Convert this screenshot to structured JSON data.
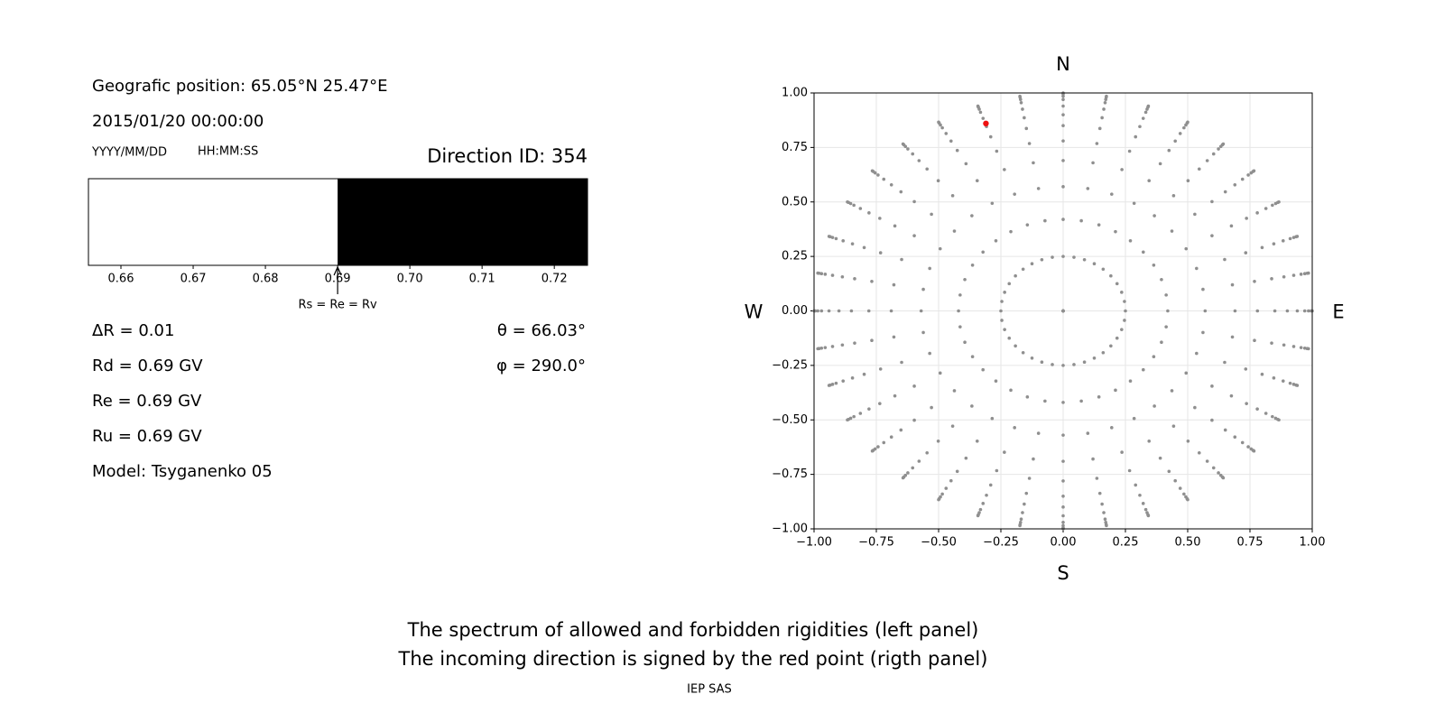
{
  "header": {
    "position": "Geografic position: 65.05°N 25.47°E",
    "datetime": "2015/01/20 00:00:00",
    "date_format": "YYYY/MM/DD",
    "time_format": "HH:MM:SS",
    "direction_id": "Direction ID: 354"
  },
  "parameters": {
    "delta_r": "ΔR = 0.01",
    "rd": "Rd = 0.69 GV",
    "re": "Re = 0.69 GV",
    "ru": "Ru = 0.69 GV",
    "model": "Model: Tsyganenko 05",
    "theta": "θ = 66.03°",
    "phi": "φ = 290.0°"
  },
  "chart_data": [
    {
      "type": "rigidity-spectrum",
      "xlim": [
        0.6555,
        0.7246
      ],
      "xticks": [
        0.66,
        0.67,
        0.68,
        0.69,
        {
          "value": 0.7,
          "label": "0.70"
        },
        0.71,
        0.72
      ],
      "cutoff": 0.69,
      "cutoff_label": "Rs = Re = Rv",
      "below_color": "#ffffff",
      "above_color": "#000000"
    },
    {
      "type": "scatter",
      "xlim": [
        -1,
        1
      ],
      "ylim": [
        -1,
        1
      ],
      "xticks": [
        {
          "value": -1,
          "label": "−1.00"
        },
        {
          "value": -0.75,
          "label": "−0.75"
        },
        {
          "value": -0.5,
          "label": "−0.50"
        },
        {
          "value": -0.25,
          "label": "−0.25"
        },
        {
          "value": 0,
          "label": "0.00"
        },
        0.25,
        {
          "value": 0.5,
          "label": "0.50"
        },
        0.75,
        {
          "value": 1,
          "label": "1.00"
        }
      ],
      "yticks": [
        {
          "value": -1,
          "label": "−1.00"
        },
        {
          "value": -0.75,
          "label": "−0.75"
        },
        {
          "value": -0.5,
          "label": "−0.50"
        },
        {
          "value": -0.25,
          "label": "−0.25"
        },
        {
          "value": 0,
          "label": "0.00"
        },
        0.25,
        {
          "value": 0.5,
          "label": "0.50"
        },
        0.75,
        {
          "value": 1,
          "label": "1.00"
        }
      ],
      "grid": true,
      "directions": {
        "top": "N",
        "bottom": "S",
        "left": "W",
        "right": "E"
      },
      "grid_points": {
        "r": [
          0,
          0.25,
          0.42,
          0.57,
          0.69,
          0.78,
          0.85,
          0.9,
          0.94,
          0.97,
          0.985,
          0.995,
          1.0
        ],
        "azimuth": [
          0,
          10,
          20,
          30,
          40,
          50,
          60,
          70,
          80,
          90,
          100,
          110,
          120,
          130,
          140,
          150,
          160,
          170,
          180,
          190,
          200,
          210,
          220,
          230,
          240,
          250,
          260,
          270,
          280,
          290,
          300,
          310,
          320,
          330,
          340,
          350
        ],
        "color": "#8f8f8f"
      },
      "highlight": {
        "x": -0.31,
        "y": 0.86,
        "color": "#ee1111"
      }
    }
  ],
  "caption": [
    "The spectrum of allowed and forbidden rigidities (left panel)",
    "The incoming direction is signed by the red point (rigth panel)"
  ],
  "footer": "IEP SAS"
}
